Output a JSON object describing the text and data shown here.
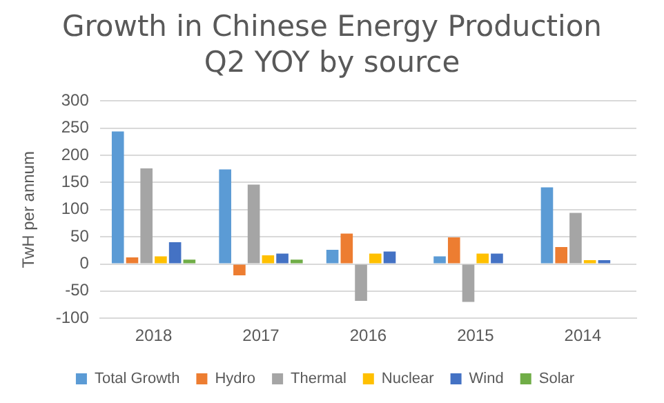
{
  "chart_data": {
    "type": "bar",
    "title": "Growth in Chinese Energy Production Q2 YOY by source",
    "ylabel": "TwH per annum",
    "categories": [
      "2018",
      "2017",
      "2016",
      "2015",
      "2014"
    ],
    "series": [
      {
        "name": "Total Growth",
        "color": "#5b9bd5",
        "values": [
          244,
          174,
          26,
          14,
          141
        ]
      },
      {
        "name": "Hydro",
        "color": "#ed7d31",
        "values": [
          12,
          -21,
          56,
          49,
          31
        ]
      },
      {
        "name": "Thermal",
        "color": "#a5a5a5",
        "values": [
          176,
          146,
          -68,
          -70,
          94
        ]
      },
      {
        "name": "Nuclear",
        "color": "#ffc000",
        "values": [
          14,
          16,
          19,
          19,
          7
        ]
      },
      {
        "name": "Wind",
        "color": "#4472c4",
        "values": [
          40,
          19,
          23,
          19,
          7
        ]
      },
      {
        "name": "Solar",
        "color": "#70ad47",
        "values": [
          8,
          8,
          null,
          null,
          null
        ]
      }
    ],
    "ylim": [
      -100,
      300
    ],
    "yticks": [
      -100,
      -50,
      0,
      50,
      100,
      150,
      200,
      250,
      300
    ],
    "grid": "y",
    "legend": "bottom"
  }
}
